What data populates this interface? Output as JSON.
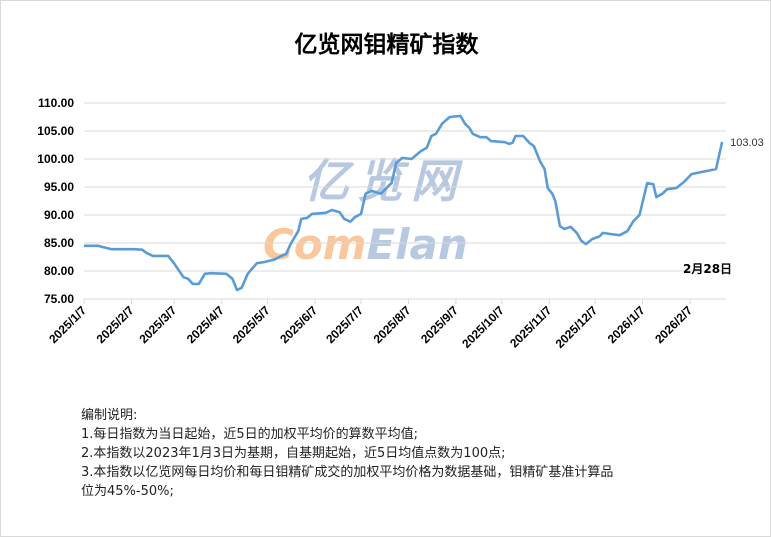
{
  "chart_data": {
    "type": "line",
    "title": "亿览网钼精矿指数",
    "ylim": [
      75,
      110
    ],
    "yticks": [
      "75.00",
      "80.00",
      "85.00",
      "90.00",
      "95.00",
      "100.00",
      "105.00",
      "110.00"
    ],
    "xticks": [
      "2025/1/7",
      "2025/2/7",
      "2025/3/7",
      "2025/4/7",
      "2025/5/7",
      "2025/6/7",
      "2025/7/7",
      "2025/8/7",
      "2025/9/7",
      "2025/10/7",
      "2025/11/7",
      "2025/12/7",
      "2026/1/7",
      "2026/2/7"
    ],
    "grid": "horizontal",
    "line_color": "#5b9bd5",
    "end_label": "103.03",
    "date_annotation": "2月28日",
    "series": [
      {
        "x": [
          "2025-01-07",
          "2025-01-16",
          "2025-01-25",
          "2025-02-08",
          "2025-02-14",
          "2025-02-17",
          "2025-02-21",
          "2025-03-03",
          "2025-03-07",
          "2025-03-09",
          "2025-03-13",
          "2025-03-16",
          "2025-03-19",
          "2025-03-23",
          "2025-03-27",
          "2025-03-31",
          "2025-04-10",
          "2025-04-14",
          "2025-04-17",
          "2025-04-20",
          "2025-04-24",
          "2025-04-30",
          "2025-05-05",
          "2025-05-12",
          "2025-05-16",
          "2025-05-19",
          "2025-05-22",
          "2025-05-27",
          "2025-05-29",
          "2025-06-02",
          "2025-06-05",
          "2025-06-14",
          "2025-06-18",
          "2025-06-23",
          "2025-06-26",
          "2025-06-30",
          "2025-07-03",
          "2025-07-07",
          "2025-07-10",
          "2025-07-14",
          "2025-07-20",
          "2025-07-25",
          "2025-07-27",
          "2025-07-30",
          "2025-08-03",
          "2025-08-09",
          "2025-08-15",
          "2025-08-19",
          "2025-08-22",
          "2025-08-25",
          "2025-08-29",
          "2025-09-03",
          "2025-09-10",
          "2025-09-13",
          "2025-09-16",
          "2025-09-18",
          "2025-09-23",
          "2025-09-27",
          "2025-09-30",
          "2025-10-09",
          "2025-10-12",
          "2025-10-14",
          "2025-10-16",
          "2025-10-21",
          "2025-10-25",
          "2025-10-28",
          "2025-11-01",
          "2025-11-04",
          "2025-11-06",
          "2025-11-09",
          "2025-11-11",
          "2025-11-14",
          "2025-11-17",
          "2025-11-21",
          "2025-11-25",
          "2025-11-28",
          "2025-12-01",
          "2025-12-05",
          "2025-12-10",
          "2025-12-12",
          "2025-12-17",
          "2025-12-23",
          "2025-12-28",
          "2026-01-01",
          "2026-01-05",
          "2026-01-10",
          "2026-01-14",
          "2026-01-16",
          "2026-01-20",
          "2026-01-23",
          "2026-01-29",
          "2026-02-03",
          "2026-02-08",
          "2026-02-15",
          "2026-02-24",
          "2026-02-28"
        ],
        "values": [
          84.5,
          84.5,
          83.9,
          83.9,
          83.8,
          83.2,
          82.7,
          82.7,
          81.3,
          80.5,
          78.9,
          78.6,
          77.7,
          77.7,
          79.5,
          79.6,
          79.5,
          78.6,
          76.6,
          77.0,
          79.5,
          81.4,
          81.6,
          82.1,
          82.7,
          83.0,
          84.8,
          87.1,
          89.3,
          89.5,
          90.2,
          90.4,
          90.9,
          90.5,
          89.3,
          88.8,
          89.6,
          90.2,
          93.8,
          94.3,
          93.8,
          95.2,
          95.7,
          99.3,
          100.2,
          100.0,
          101.4,
          102.0,
          104.1,
          104.5,
          106.3,
          107.5,
          107.7,
          106.3,
          105.5,
          104.5,
          103.9,
          103.9,
          103.2,
          103.0,
          102.7,
          102.9,
          104.1,
          104.1,
          102.9,
          102.3,
          99.6,
          98.2,
          94.8,
          93.8,
          92.5,
          88.0,
          87.5,
          87.9,
          86.8,
          85.4,
          84.8,
          85.7,
          86.2,
          86.8,
          86.6,
          86.4,
          87.1,
          88.9,
          90.0,
          95.7,
          95.5,
          93.2,
          93.8,
          94.6,
          94.8,
          95.9,
          97.3,
          97.7,
          98.2,
          103.03
        ]
      }
    ]
  },
  "watermark": {
    "cn": "亿览网",
    "en_a": "Com",
    "en_b": "Elan"
  },
  "notes": {
    "heading": "编制说明:",
    "lines": [
      "1.每日指数为当日起始，近5日的加权平均价的算数平均值;",
      "2.本指数以2023年1月3日为基期，自基期起始，近5日均值点数为100点;",
      "3.本指数以亿览网每日均价和每日钼精矿成交的加权平均价格为数据基础，钼精矿基准计算品",
      "位为45%-50%;"
    ]
  }
}
